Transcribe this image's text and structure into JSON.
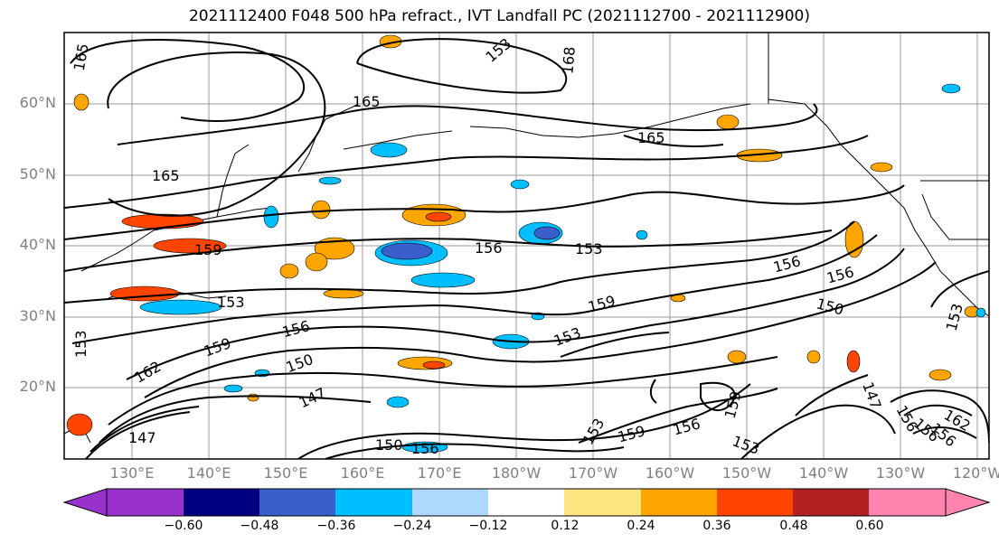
{
  "title": "2021112400 F048 500 hPa refract., IVT Landfall PC (2021112700 - 2021112900)",
  "lat_labels": [
    "60°N",
    "50°N",
    "40°N",
    "30°N",
    "20°N"
  ],
  "lon_labels": [
    "130°E",
    "140°E",
    "150°E",
    "160°E",
    "170°E",
    "180°W",
    "170°W",
    "160°W",
    "150°W",
    "140°W",
    "130°W",
    "120°W"
  ],
  "colorbar": {
    "colors": [
      "#9932cc",
      "#000080",
      "#3a5fcd",
      "#00bfff",
      "#add8ff",
      "#ffffff",
      "#ffe680",
      "#ffa500",
      "#ff4500",
      "#b22222",
      "#ff85b0"
    ],
    "tick_labels": [
      "−0.60",
      "−0.48",
      "−0.36",
      "−0.24",
      "−0.12",
      "0.12",
      "0.24",
      "0.36",
      "0.48",
      "0.60"
    ]
  },
  "contour_labels": [
    "165",
    "168",
    "165",
    "165",
    "165",
    "159",
    "156",
    "153",
    "153",
    "153",
    "156",
    "159",
    "162",
    "150",
    "147",
    "147",
    "159",
    "153",
    "156",
    "150",
    "156",
    "156",
    "150",
    "153",
    "159",
    "153",
    "156",
    "153",
    "159",
    "147",
    "156",
    "162",
    "156",
    "156",
    "153"
  ]
}
